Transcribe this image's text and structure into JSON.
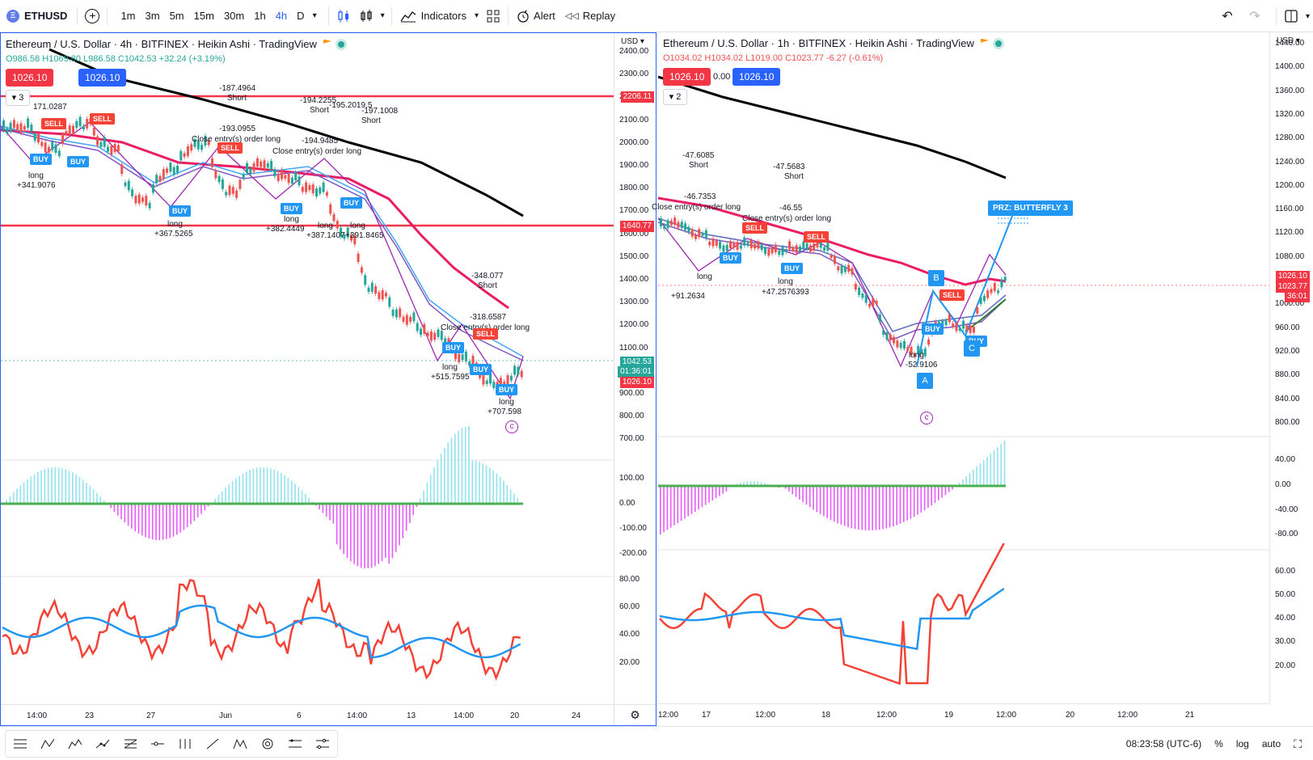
{
  "toolbar": {
    "symbol": "ETHUSD",
    "intervals": [
      "1m",
      "3m",
      "5m",
      "15m",
      "30m",
      "1h",
      "4h",
      "D"
    ],
    "active_interval": "4h",
    "indicators_label": "Indicators",
    "alert_label": "Alert",
    "replay_label": "Replay"
  },
  "left_chart": {
    "title_parts": [
      "Ethereum / U.S. Dollar",
      "4h",
      "BITFINEX",
      "Heikin Ashi",
      "TradingView"
    ],
    "title": "Ethereum / U.S. Dollar · 4h · BITFINEX · Heikin Ashi · TradingView",
    "ohlc_open": "O986.58",
    "ohlc_high": "H1069.80",
    "ohlc_low": "L986.58",
    "ohlc_close": "C1042.53",
    "ohlc_change": "+32.24 (+3.19%)",
    "sell_price": "1026.10",
    "buy_price": "1026.10",
    "collapse_count": "3",
    "currency": "USD",
    "price_ticks": [
      "2400.00",
      "2300.00",
      "2200.00",
      "2100.00",
      "2000.00",
      "1900.00",
      "1800.00",
      "1700.00",
      "1600.00",
      "1500.00",
      "1400.00",
      "1300.00",
      "1200.00",
      "1100.00",
      "1000.00",
      "900.00",
      "800.00",
      "700.00"
    ],
    "macd_ticks": [
      "100.00",
      "0.00",
      "-100.00",
      "-200.00"
    ],
    "rsi_ticks": [
      "80.00",
      "60.00",
      "40.00",
      "20.00"
    ],
    "time_ticks": [
      "14:00",
      "23",
      "27",
      "Jun",
      "6",
      "14:00",
      "13",
      "14:00",
      "20",
      "24"
    ],
    "axis_tags": {
      "line_top": "2206.11",
      "line_mid": "1640.77",
      "last_price": "1042.53",
      "countdown": "01:36:01",
      "bid": "1026.10"
    },
    "annotations": [
      "-187.4964",
      "Short",
      "-193.0955",
      "Close entry(s) order long",
      "-194.2255",
      "Short",
      "-194.9485",
      "Close entry(s) order long",
      "-195.2019.5",
      "-197.1008",
      "Short",
      "long",
      "+341.9076",
      "long",
      "+367.5265",
      "long",
      "+382.4449",
      "long",
      "+387.1407",
      "long",
      "+391.8465",
      "-348.077",
      "Short",
      "-318.6587",
      "Close entry(s) order long",
      "long",
      "+515.7595",
      "long",
      "+707.598",
      "171.0287"
    ]
  },
  "right_chart": {
    "title": "Ethereum / U.S. Dollar · 1h · BITFINEX · Heikin Ashi · TradingView",
    "ohlc_open": "O1034.02",
    "ohlc_high": "H1034.02",
    "ohlc_low": "L1019.00",
    "ohlc_close": "C1023.77",
    "ohlc_change": "-6.27 (-0.61%)",
    "sell_price": "1026.10",
    "spread": "0.00",
    "buy_price": "1026.10",
    "collapse_count": "2",
    "currency": "USD",
    "price_ticks": [
      "1440.00",
      "1400.00",
      "1360.00",
      "1320.00",
      "1280.00",
      "1240.00",
      "1200.00",
      "1160.00",
      "1120.00",
      "1080.00",
      "1040.00",
      "1000.00",
      "960.00",
      "920.00",
      "880.00",
      "840.00",
      "800.00"
    ],
    "macd_ticks": [
      "40.00",
      "0.00",
      "-40.00",
      "-80.00"
    ],
    "rsi_ticks": [
      "60.00",
      "50.00",
      "40.00",
      "30.00",
      "20.00"
    ],
    "time_ticks": [
      "12:00",
      "17",
      "12:00",
      "18",
      "12:00",
      "19",
      "12:00",
      "20",
      "12:00",
      "21"
    ],
    "axis_tags": {
      "bid": "1026.10",
      "last_price": "1023.77",
      "countdown": "36:01"
    },
    "prz_label": "PRZ: BUTTERFLY 3",
    "pattern_points": [
      "A",
      "B",
      "C"
    ],
    "annotations": [
      "-47.6085",
      "Short",
      "-46.7353",
      "Close entry(s) order long",
      "-47.5683",
      "Short",
      "-46.55",
      "Close entry(s) order long",
      "long",
      "+91.2634",
      "long",
      "+47.2576393",
      "long",
      "-52.9106"
    ]
  },
  "signals": {
    "buy": "BUY",
    "sell": "SELL"
  },
  "status_bar": {
    "time": "08:23:58 (UTC-6)",
    "percent": "%",
    "log": "log",
    "auto": "auto"
  },
  "colors": {
    "accent": "#2962ff",
    "up": "#26a69a",
    "down": "#ef5350",
    "macd_pos": "#80deea",
    "macd_neg": "#e040fb",
    "rsi_line": "#f44336",
    "rsi_signal": "#2196f3",
    "sma_long": "#000000",
    "ema_red": "#e91e63",
    "hline_red": "#f23645"
  }
}
